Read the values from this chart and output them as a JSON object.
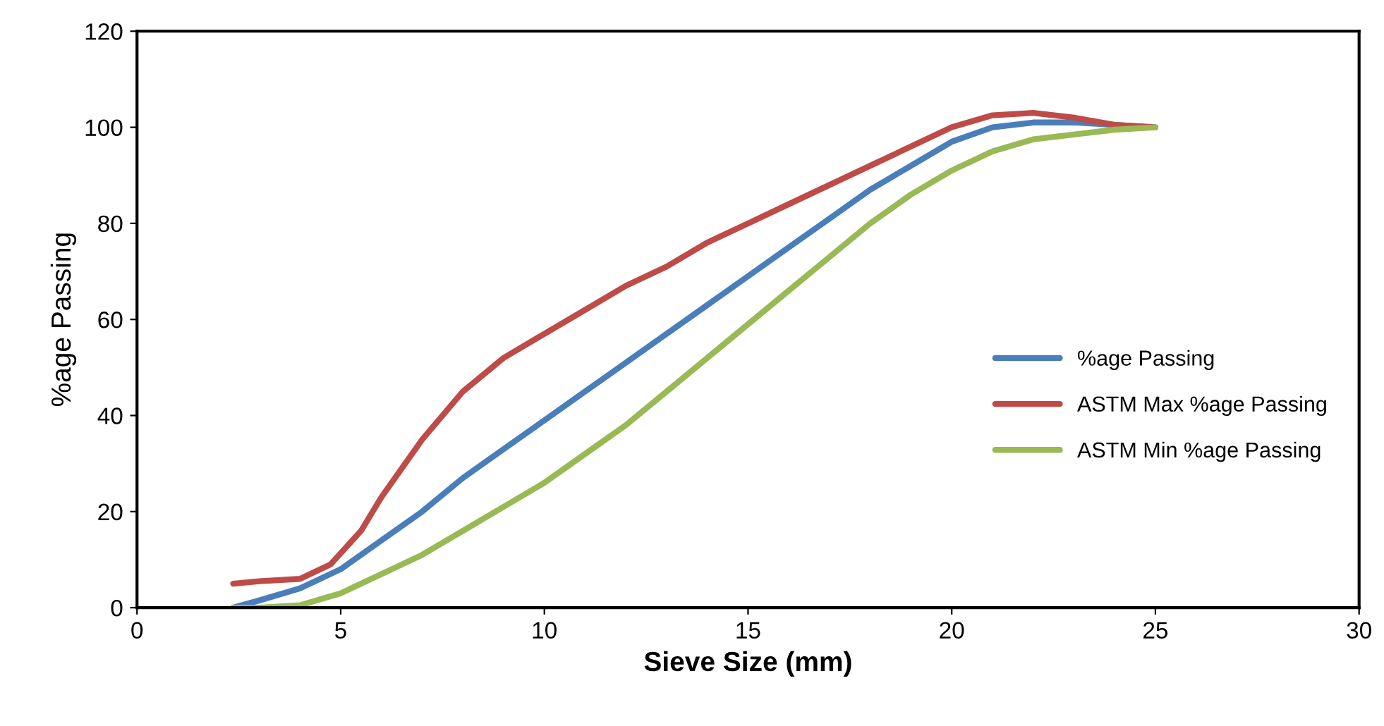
{
  "chart_data": {
    "type": "line",
    "xlabel": "Sieve Size (mm)",
    "ylabel": "%age Passing",
    "xlim": [
      0,
      30
    ],
    "xticks": [
      0,
      5,
      10,
      15,
      20,
      25,
      30
    ],
    "ylim": [
      0,
      120
    ],
    "yticks": [
      0,
      20,
      40,
      60,
      80,
      100,
      120
    ],
    "grid": false,
    "legend": "right",
    "marker": "none",
    "line_style": "solid",
    "series": [
      {
        "name": "%age Passing",
        "color": "#4a7ebb",
        "x": [
          2.36,
          3,
          4,
          5,
          6,
          7,
          8,
          9,
          10,
          11,
          12,
          13,
          14,
          15,
          16,
          17,
          18,
          19,
          20,
          21,
          22,
          23,
          24,
          25
        ],
        "values": [
          0,
          1.5,
          4,
          8,
          14,
          20,
          27,
          33,
          39,
          45,
          51,
          57,
          63,
          69,
          75,
          81,
          87,
          92,
          97,
          100,
          101,
          101,
          100.5,
          100
        ]
      },
      {
        "name": "ASTM Max %age Passing",
        "color": "#be4b48",
        "x": [
          2.36,
          3,
          4,
          4.75,
          5.5,
          6,
          7,
          8,
          9,
          10,
          11,
          12,
          13,
          14,
          15,
          16,
          17,
          18,
          19,
          20,
          21,
          22,
          23,
          24,
          25
        ],
        "values": [
          5,
          5.5,
          6,
          9,
          16,
          23,
          35,
          45,
          52,
          57,
          62,
          67,
          71,
          76,
          80,
          84,
          88,
          92,
          96,
          100,
          102.5,
          103,
          102,
          100.5,
          100
        ]
      },
      {
        "name": "ASTM Min %age Passing",
        "color": "#98b954",
        "x": [
          2.36,
          3,
          4,
          5,
          6,
          7,
          8,
          9,
          10,
          11,
          12,
          13,
          14,
          15,
          16,
          17,
          18,
          19,
          20,
          21,
          22,
          23,
          24,
          25
        ],
        "values": [
          0,
          0,
          0.5,
          3,
          7,
          11,
          16,
          21,
          26,
          32,
          38,
          45,
          52,
          59,
          66,
          73,
          80,
          86,
          91,
          95,
          97.5,
          98.5,
          99.5,
          100
        ]
      }
    ]
  }
}
